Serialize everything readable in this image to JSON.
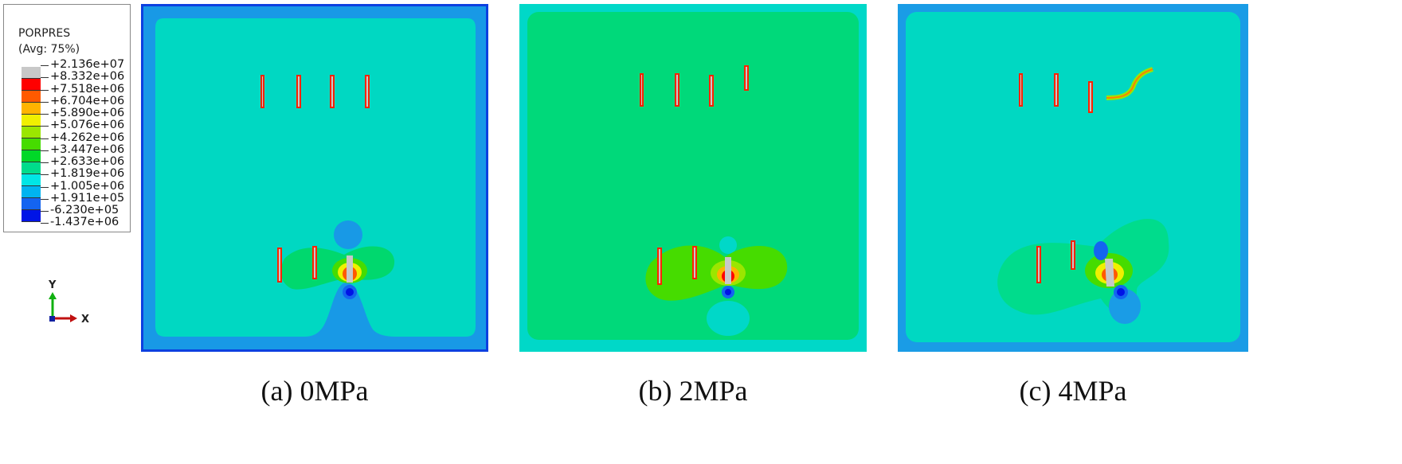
{
  "legend": {
    "variable": "PORPRES",
    "averaging": "(Avg: 75%)",
    "levels": [
      "+2.136e+07",
      "+8.332e+06",
      "+7.518e+06",
      "+6.704e+06",
      "+5.890e+06",
      "+5.076e+06",
      "+4.262e+06",
      "+3.447e+06",
      "+2.633e+06",
      "+1.819e+06",
      "+1.005e+06",
      "+1.911e+05",
      "-6.230e+05",
      "-1.437e+06"
    ],
    "colors": [
      "#c8c8c8",
      "#ff0000",
      "#ff5a00",
      "#ffb400",
      "#f0f000",
      "#9be600",
      "#46dc00",
      "#00d828",
      "#00dc8c",
      "#00e6e6",
      "#00b4f0",
      "#1464f0",
      "#0014e6"
    ]
  },
  "triad": {
    "y_label": "Y",
    "x_label": "X"
  },
  "panels": [
    {
      "caption": "(a) 0MPa",
      "outer_color": "#1899e6",
      "inner_color": "#00d8c2"
    },
    {
      "caption": "(b) 2MPa",
      "outer_color": "#00d8c8",
      "inner_color": "#00d97a"
    },
    {
      "caption": "(c) 4MPa",
      "outer_color": "#1a9ce6",
      "inner_color": "#00d8c2"
    }
  ]
}
